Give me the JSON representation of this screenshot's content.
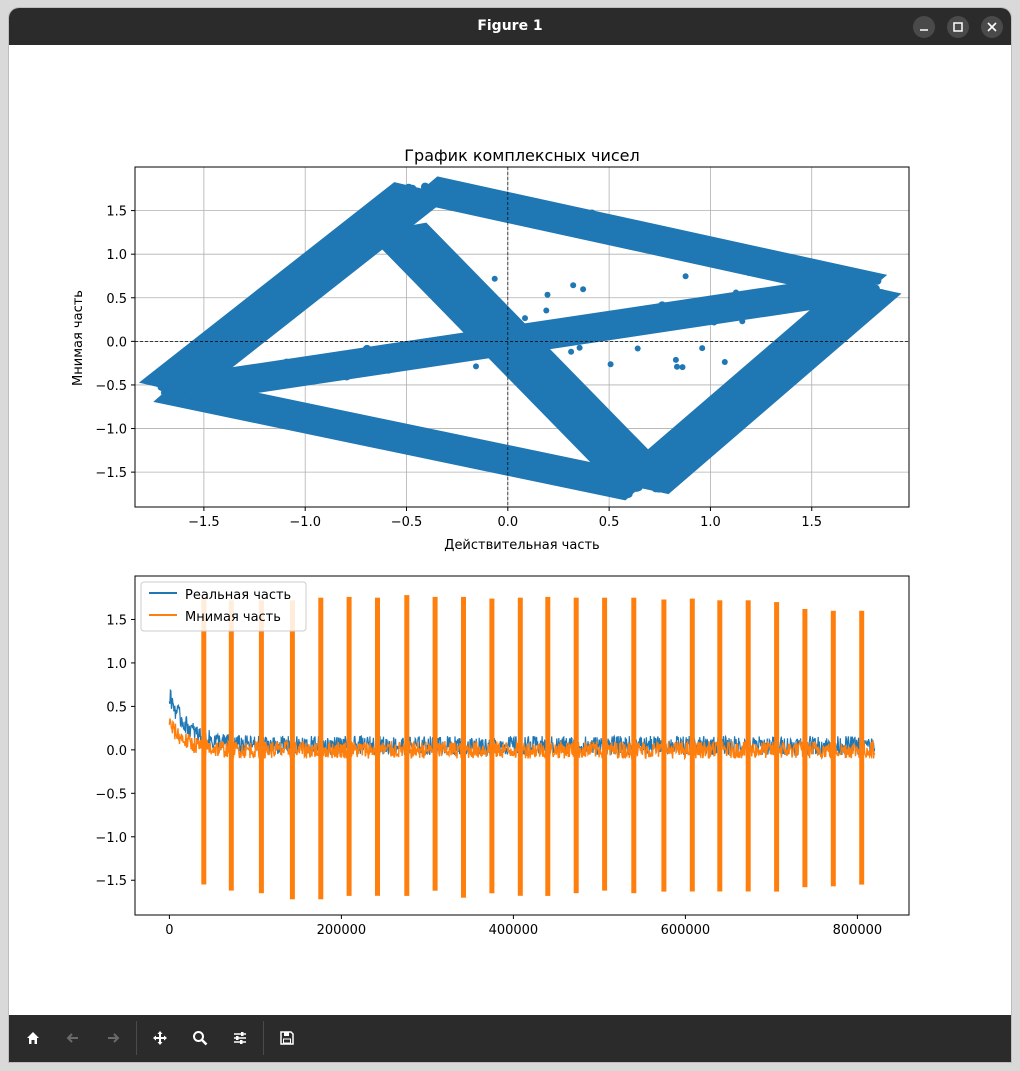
{
  "window": {
    "title": "Figure 1"
  },
  "toolbar": {
    "buttons": [
      {
        "name": "home-icon"
      },
      {
        "name": "back-icon"
      },
      {
        "name": "forward-icon"
      },
      {
        "name": "pan-icon"
      },
      {
        "name": "zoom-icon"
      },
      {
        "name": "configure-subplots-icon"
      },
      {
        "name": "save-icon"
      }
    ]
  },
  "colors": {
    "blue": "#1f77b4",
    "orange": "#ff7f0e",
    "grid": "#b0b0b0"
  },
  "chart_data": [
    {
      "type": "scatter",
      "title": "График комплексных чисел",
      "xlabel": "Действительная часть",
      "ylabel": "Мнимая часть",
      "xlim": [
        -1.84,
        1.98
      ],
      "ylim": [
        -1.9,
        2.0
      ],
      "xticks": [
        -1.5,
        -1.0,
        -0.5,
        0.0,
        0.5,
        1.0,
        1.5
      ],
      "xtick_labels": [
        "−1.5",
        "−1.0",
        "−0.5",
        "0.0",
        "0.5",
        "1.0",
        "1.5"
      ],
      "yticks": [
        -1.5,
        -1.0,
        -0.5,
        0.0,
        0.5,
        1.0,
        1.5
      ],
      "ytick_labels": [
        "−1.5",
        "−1.0",
        "−0.5",
        "0.0",
        "0.5",
        "1.0",
        "1.5"
      ],
      "grid": true,
      "reference_lines": {
        "x": 0,
        "y": 0,
        "style": "dashed"
      },
      "series": [
        {
          "color": "#1f77b4",
          "bands": [
            {
              "from": [
                -1.68,
                -0.55
              ],
              "to": [
                -0.42,
                1.75
              ]
            },
            {
              "from": [
                -0.42,
                1.75
              ],
              "to": [
                1.8,
                0.62
              ]
            },
            {
              "from": [
                1.8,
                0.62
              ],
              "to": [
                0.65,
                -1.68
              ]
            },
            {
              "from": [
                0.65,
                -1.68
              ],
              "to": [
                -1.68,
                -0.55
              ]
            },
            {
              "from": [
                -1.6,
                -0.55
              ],
              "to": [
                1.7,
                0.6
              ]
            },
            {
              "from": [
                -0.55,
                1.3
              ],
              "to": [
                0.65,
                -1.55
              ]
            }
          ]
        }
      ]
    },
    {
      "type": "line",
      "x_range": [
        0,
        820000
      ],
      "xlim": [
        -40000,
        860000
      ],
      "ylim": [
        -1.9,
        2.0
      ],
      "xticks": [
        0,
        200000,
        400000,
        600000,
        800000
      ],
      "xtick_labels": [
        "0",
        "200000",
        "400000",
        "600000",
        "800000"
      ],
      "yticks": [
        -1.5,
        -1.0,
        -0.5,
        0.0,
        0.5,
        1.0,
        1.5
      ],
      "ytick_labels": [
        "−1.5",
        "−1.0",
        "−0.5",
        "0.0",
        "0.5",
        "1.0",
        "1.5"
      ],
      "legend": {
        "placement": "upper-left",
        "entries": [
          "Реальная часть",
          "Мнимая часть"
        ]
      },
      "series": [
        {
          "name": "Реальная часть",
          "color": "#1f77b4",
          "initial_peak": 0.62,
          "baseline": 0.05
        },
        {
          "name": "Мнимая часть",
          "color": "#ff7f0e",
          "baseline": 0.0
        }
      ],
      "spikes": [
        {
          "x": 40000,
          "top": 1.75,
          "bottom": -1.55
        },
        {
          "x": 72000,
          "top": 1.72,
          "bottom": -1.62
        },
        {
          "x": 107000,
          "top": 1.72,
          "bottom": -1.65
        },
        {
          "x": 143000,
          "top": 1.72,
          "bottom": -1.72
        },
        {
          "x": 176000,
          "top": 1.75,
          "bottom": -1.72
        },
        {
          "x": 209000,
          "top": 1.76,
          "bottom": -1.68
        },
        {
          "x": 242000,
          "top": 1.75,
          "bottom": -1.68
        },
        {
          "x": 276000,
          "top": 1.78,
          "bottom": -1.68
        },
        {
          "x": 309000,
          "top": 1.76,
          "bottom": -1.62
        },
        {
          "x": 342000,
          "top": 1.76,
          "bottom": -1.7
        },
        {
          "x": 375000,
          "top": 1.74,
          "bottom": -1.65
        },
        {
          "x": 408000,
          "top": 1.75,
          "bottom": -1.68
        },
        {
          "x": 440000,
          "top": 1.76,
          "bottom": -1.68
        },
        {
          "x": 473000,
          "top": 1.75,
          "bottom": -1.65
        },
        {
          "x": 506000,
          "top": 1.75,
          "bottom": -1.62
        },
        {
          "x": 540000,
          "top": 1.75,
          "bottom": -1.65
        },
        {
          "x": 575000,
          "top": 1.73,
          "bottom": -1.63
        },
        {
          "x": 608000,
          "top": 1.74,
          "bottom": -1.63
        },
        {
          "x": 640000,
          "top": 1.72,
          "bottom": -1.63
        },
        {
          "x": 673000,
          "top": 1.72,
          "bottom": -1.63
        },
        {
          "x": 706000,
          "top": 1.7,
          "bottom": -1.63
        },
        {
          "x": 739000,
          "top": 1.62,
          "bottom": -1.58
        },
        {
          "x": 772000,
          "top": 1.6,
          "bottom": -1.57
        },
        {
          "x": 805000,
          "top": 1.6,
          "bottom": -1.55
        }
      ]
    }
  ]
}
